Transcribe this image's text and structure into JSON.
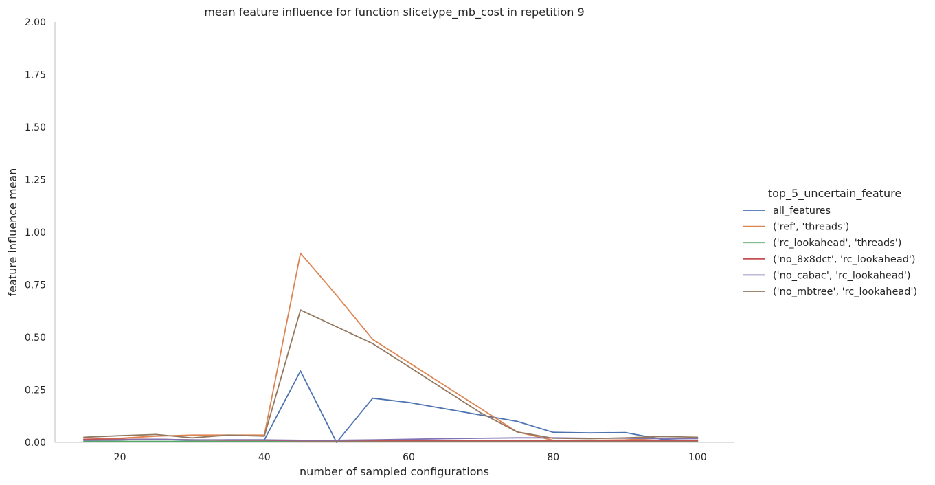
{
  "chart_data": {
    "type": "line",
    "title": "mean feature influence for function slicetype_mb_cost in repetition 9",
    "xlabel": "number of sampled configurations",
    "ylabel": "feature influence mean",
    "xlim": [
      11,
      105
    ],
    "ylim": [
      0,
      2.0
    ],
    "x_ticks": [
      20,
      40,
      60,
      80,
      100
    ],
    "y_ticks": [
      0.0,
      0.25,
      0.5,
      0.75,
      1.0,
      1.25,
      1.5,
      1.75,
      2.0
    ],
    "x_tick_labels": [
      "20",
      "40",
      "60",
      "80",
      "100"
    ],
    "y_tick_labels": [
      "0.00",
      "0.25",
      "0.50",
      "0.75",
      "1.00",
      "1.25",
      "1.50",
      "1.75",
      "2.00"
    ],
    "grid": false,
    "legend_title": "top_5_uncertain_feature",
    "legend_position": "right",
    "x": [
      15,
      20,
      25,
      30,
      35,
      40,
      45,
      50,
      55,
      60,
      65,
      70,
      75,
      80,
      85,
      90,
      95,
      100
    ],
    "series": [
      {
        "name": "all_features",
        "color": "#4c72b0",
        "values": [
          0.01,
          0.012,
          0.015,
          0.01,
          0.012,
          0.012,
          0.34,
          0.0,
          0.21,
          0.19,
          0.16,
          0.13,
          0.1,
          0.048,
          0.045,
          0.047,
          0.015,
          0.02
        ]
      },
      {
        "name": "('ref', 'threads')",
        "color": "#dd8452",
        "values": [
          0.015,
          0.02,
          0.03,
          0.035,
          0.035,
          0.035,
          0.9,
          0.7,
          0.49,
          0.38,
          0.27,
          0.16,
          0.05,
          0.01,
          0.01,
          0.012,
          0.02,
          0.02
        ]
      },
      {
        "name": "('rc_lookahead', 'threads')",
        "color": "#55a868",
        "values": [
          0.005,
          0.005,
          0.005,
          0.005,
          0.005,
          0.005,
          0.005,
          0.005,
          0.005,
          0.005,
          0.005,
          0.005,
          0.005,
          0.005,
          0.005,
          0.005,
          0.005,
          0.005
        ]
      },
      {
        "name": "('no_8x8dct', 'rc_lookahead')",
        "color": "#c44e52",
        "values": [
          0.015,
          0.015,
          0.015,
          0.012,
          0.01,
          0.01,
          0.008,
          0.008,
          0.008,
          0.008,
          0.008,
          0.008,
          0.008,
          0.008,
          0.008,
          0.008,
          0.008,
          0.008
        ]
      },
      {
        "name": "('no_cabac', 'rc_lookahead')",
        "color": "#8172b3",
        "values": [
          0.01,
          0.012,
          0.015,
          0.012,
          0.012,
          0.012,
          0.01,
          0.01,
          0.012,
          0.015,
          0.018,
          0.02,
          0.022,
          0.022,
          0.02,
          0.02,
          0.018,
          0.018
        ]
      },
      {
        "name": "('no_mbtree', 'rc_lookahead')",
        "color": "#937860",
        "values": [
          0.025,
          0.032,
          0.038,
          0.022,
          0.035,
          0.03,
          0.63,
          0.55,
          0.47,
          0.36,
          0.25,
          0.14,
          0.05,
          0.02,
          0.018,
          0.022,
          0.028,
          0.025
        ]
      }
    ]
  }
}
